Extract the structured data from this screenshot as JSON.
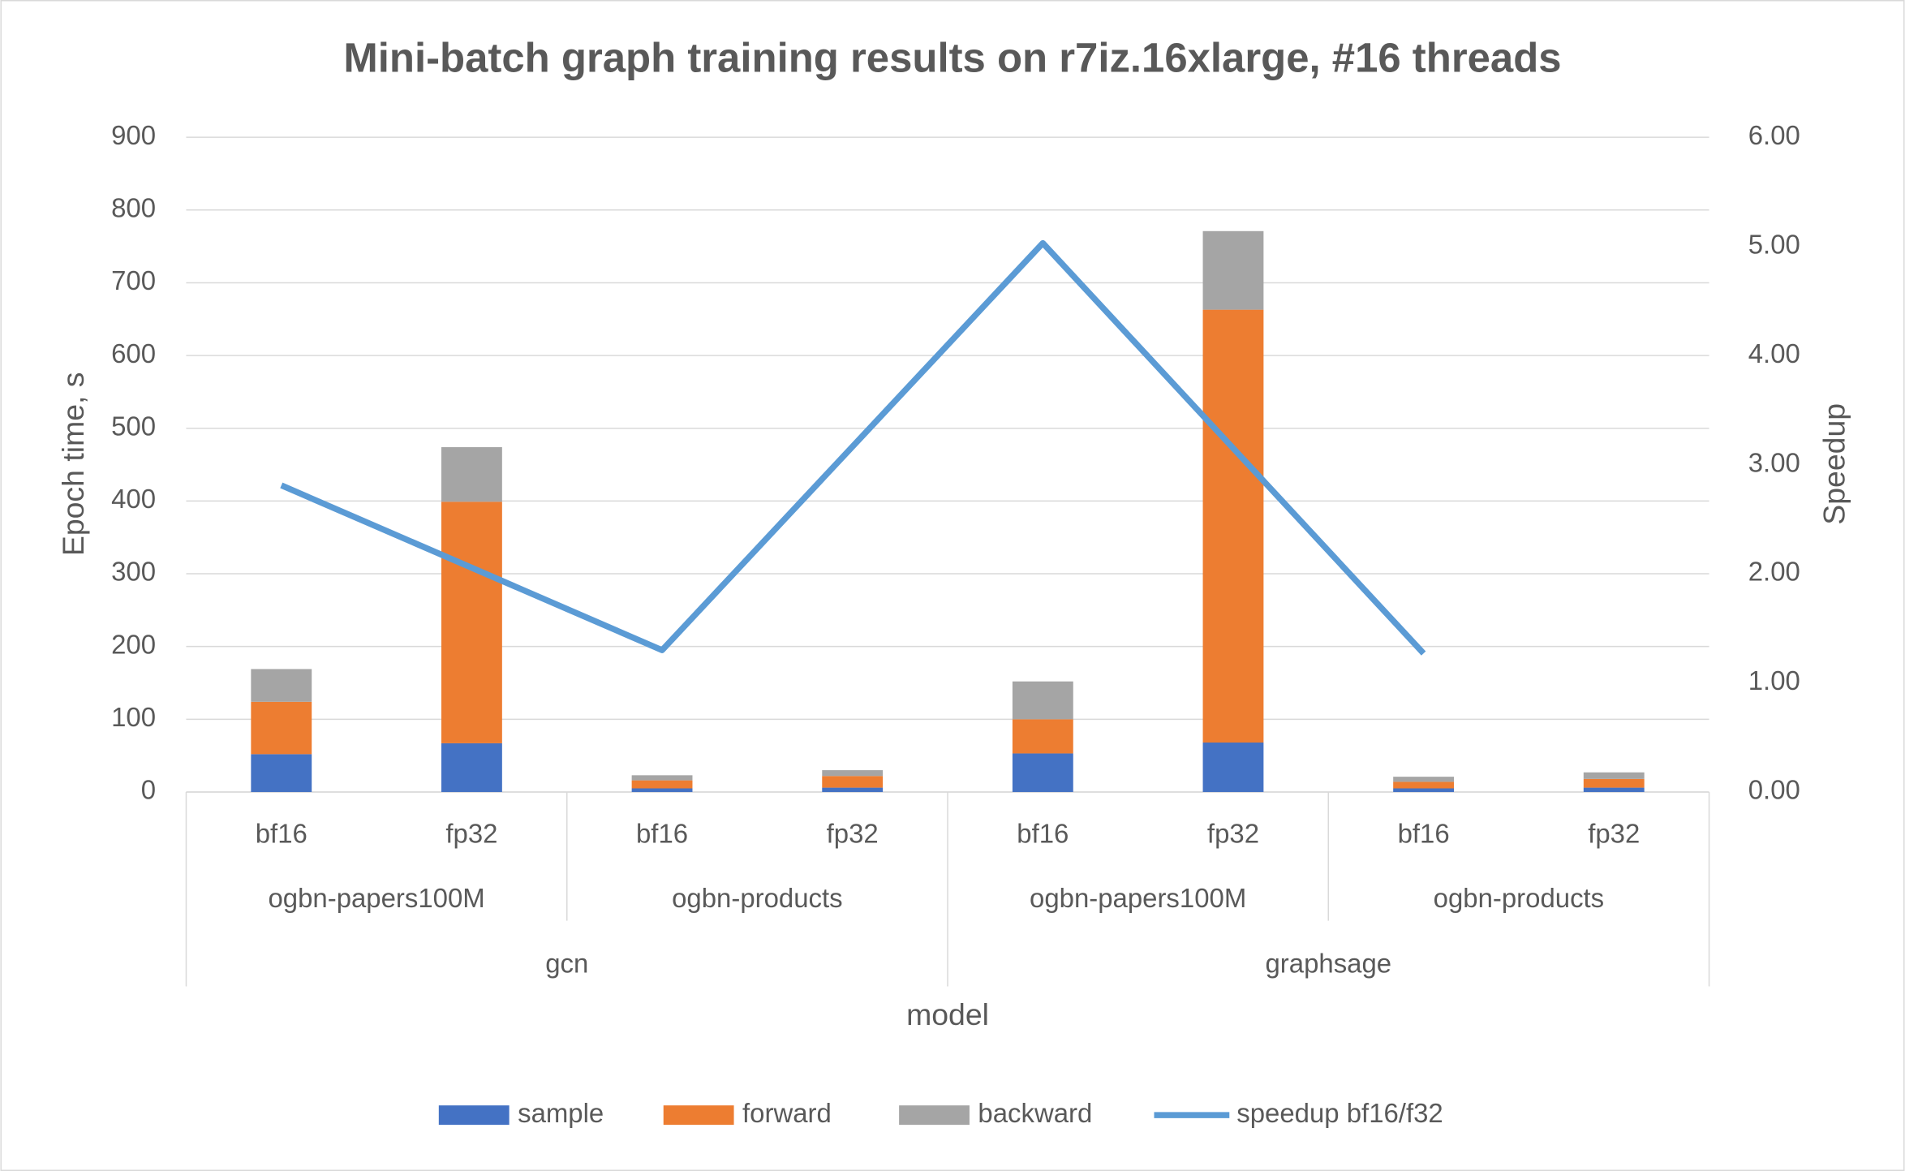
{
  "chart_data": {
    "type": "bar",
    "title": "Mini-batch graph training results on r7iz.16xlarge, #16 threads",
    "y_label": "Epoch time, s",
    "y2_label": "Speedup",
    "x_label": "model",
    "categories": [
      "bf16",
      "fp32",
      "bf16",
      "fp32",
      "bf16",
      "fp32",
      "bf16",
      "fp32"
    ],
    "groups": [
      "ogbn-papers100M",
      "ogbn-products",
      "ogbn-papers100M",
      "ogbn-products"
    ],
    "models": [
      "gcn",
      "graphsage"
    ],
    "stacked": true,
    "series": [
      {
        "name": "sample",
        "color": "#4472c4",
        "values": [
          52,
          67,
          5,
          6,
          53,
          68,
          5,
          6
        ]
      },
      {
        "name": "forward",
        "color": "#ed7d31",
        "values": [
          72,
          332,
          11,
          16,
          47,
          595,
          9,
          12
        ]
      },
      {
        "name": "backward",
        "color": "#a5a5a5",
        "values": [
          45,
          75,
          7,
          8,
          52,
          108,
          7,
          9
        ]
      }
    ],
    "line_series": {
      "name": "speedup bf16/f32",
      "color": "#5b9bd5",
      "axis": "y2",
      "values": [
        2.81,
        1.3,
        5.03,
        1.27
      ]
    },
    "ylim": [
      0,
      900
    ],
    "yticks": [
      0,
      100,
      200,
      300,
      400,
      500,
      600,
      700,
      800,
      900
    ],
    "y2lim": [
      0,
      6
    ],
    "y2ticks": [
      {
        "value": 0,
        "label": "0.00"
      },
      {
        "value": 1,
        "label": "1.00"
      },
      {
        "value": 2,
        "label": "2.00"
      },
      {
        "value": 3,
        "label": "3.00"
      },
      {
        "value": 4,
        "label": "4.00"
      },
      {
        "value": 5,
        "label": "5.00"
      },
      {
        "value": 6,
        "label": "6.00"
      }
    ],
    "grid": true,
    "legend": "bottom"
  }
}
